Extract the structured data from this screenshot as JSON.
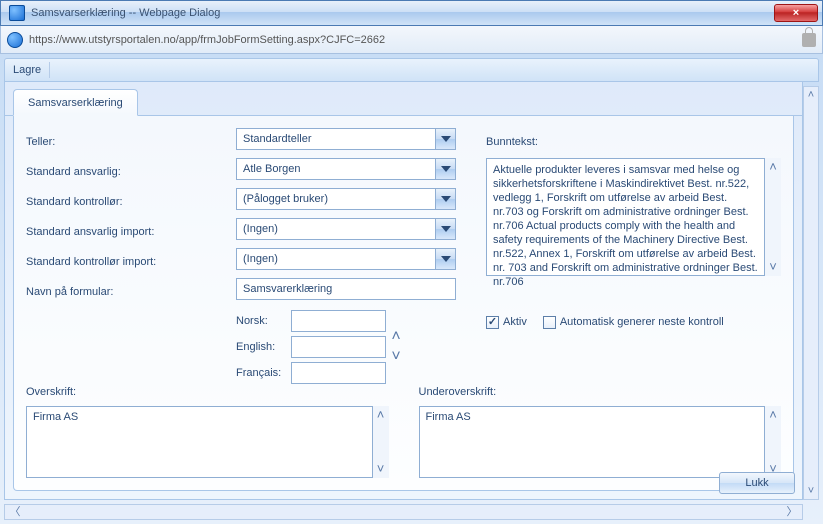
{
  "window": {
    "title": "Samsvarserklæring -- Webpage Dialog",
    "close_label": "×"
  },
  "url": "https://www.utstyrsportalen.no/app/frmJobFormSetting.aspx?CJFC=2662",
  "toolbar": {
    "save_label": "Lagre"
  },
  "tabs": {
    "main": "Samsvarserklæring"
  },
  "form": {
    "teller": {
      "label": "Teller:",
      "value": "Standardteller"
    },
    "ansvarlig": {
      "label": "Standard ansvarlig:",
      "value": "Atle Borgen"
    },
    "kontrollor": {
      "label": "Standard kontrollør:",
      "value": "(Pålogget bruker)"
    },
    "ansvarlig_import": {
      "label": "Standard ansvarlig import:",
      "value": "(Ingen)"
    },
    "kontrollor_import": {
      "label": "Standard kontrollør import:",
      "value": "(Ingen)"
    },
    "navn": {
      "label": "Navn på formular:",
      "value": "Samsvarerklæring"
    },
    "lang": {
      "no": "Norsk:",
      "en": "English:",
      "fr": "Français:"
    },
    "bunntekst": {
      "label": "Bunntekst:",
      "value": "Aktuelle produkter leveres i samsvar med helse og sikkerhetsforskriftene i Maskindirektivet Best. nr.522, vedlegg 1, Forskrift om utførelse av arbeid Best. nr.703 og Forskrift om administrative ordninger Best. nr.706 Actual products comply with the health and safety requirements of the Machinery Directive Best. nr.522, Annex 1, Forskrift om utførelse av arbeid Best. nr. 703 and Forskrift om administrative ordninger Best. nr.706"
    },
    "aktiv": {
      "label": "Aktiv",
      "checked": true
    },
    "auto": {
      "label": "Automatisk generer neste kontroll",
      "checked": false
    },
    "overskrift": {
      "label": "Overskrift:",
      "value": "Firma AS"
    },
    "underoverskrift": {
      "label": "Underoverskrift:",
      "value": "Firma AS"
    }
  },
  "buttons": {
    "close": "Lukk"
  },
  "style": {
    "colors": {
      "text": "#2a4a75",
      "border": "#8faed3",
      "panel_border": "#a9c6e8",
      "bg_top": "#c8ddf5",
      "bg_bottom": "#e7f0fb"
    }
  }
}
